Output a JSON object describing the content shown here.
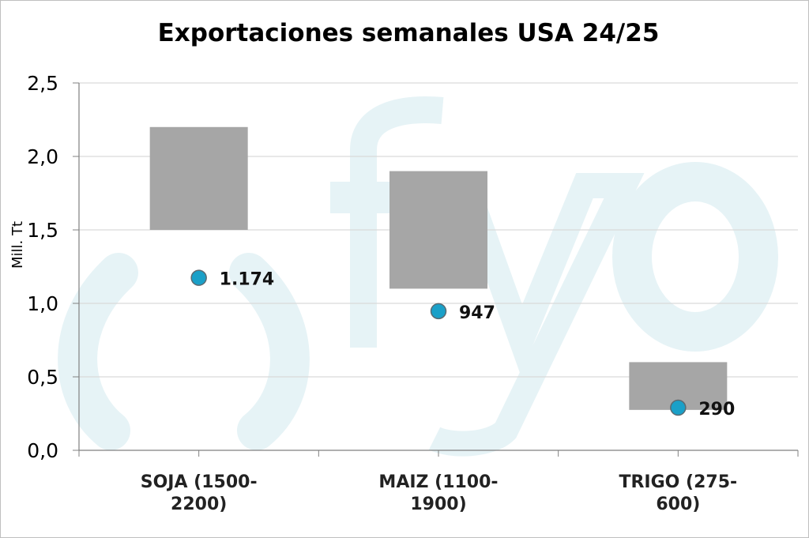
{
  "chart_data": {
    "type": "bar",
    "title": "Exportaciones semanales USA 24/25",
    "ylabel": "Mill. Tt",
    "ylim": [
      0,
      2.5
    ],
    "yticks": [
      "0,0",
      "0,5",
      "1,0",
      "1,5",
      "2,0",
      "2,5"
    ],
    "grid": true,
    "categories": [
      {
        "line1": "SOJA (1500-",
        "line2": "2200)"
      },
      {
        "line1": "MAIZ (1100-",
        "line2": "1900)"
      },
      {
        "line1": "TRIGO (275-",
        "line2": "600)"
      }
    ],
    "series": [
      {
        "name": "",
        "kind": "floating-range",
        "low": [
          1.5,
          1.1,
          0.275
        ],
        "high": [
          2.2,
          1.9,
          0.6
        ]
      },
      {
        "name": "",
        "kind": "point",
        "values": [
          1.174,
          0.947,
          0.29
        ],
        "labels": [
          "1.174",
          "947",
          "290"
        ]
      }
    ],
    "colors": {
      "range": "#a6a6a6",
      "point": "#1aa0c8",
      "point_stroke": "#5a6a72",
      "grid": "#d9d9d9",
      "axis": "#808080",
      "watermark": "#e6f3f6"
    }
  }
}
